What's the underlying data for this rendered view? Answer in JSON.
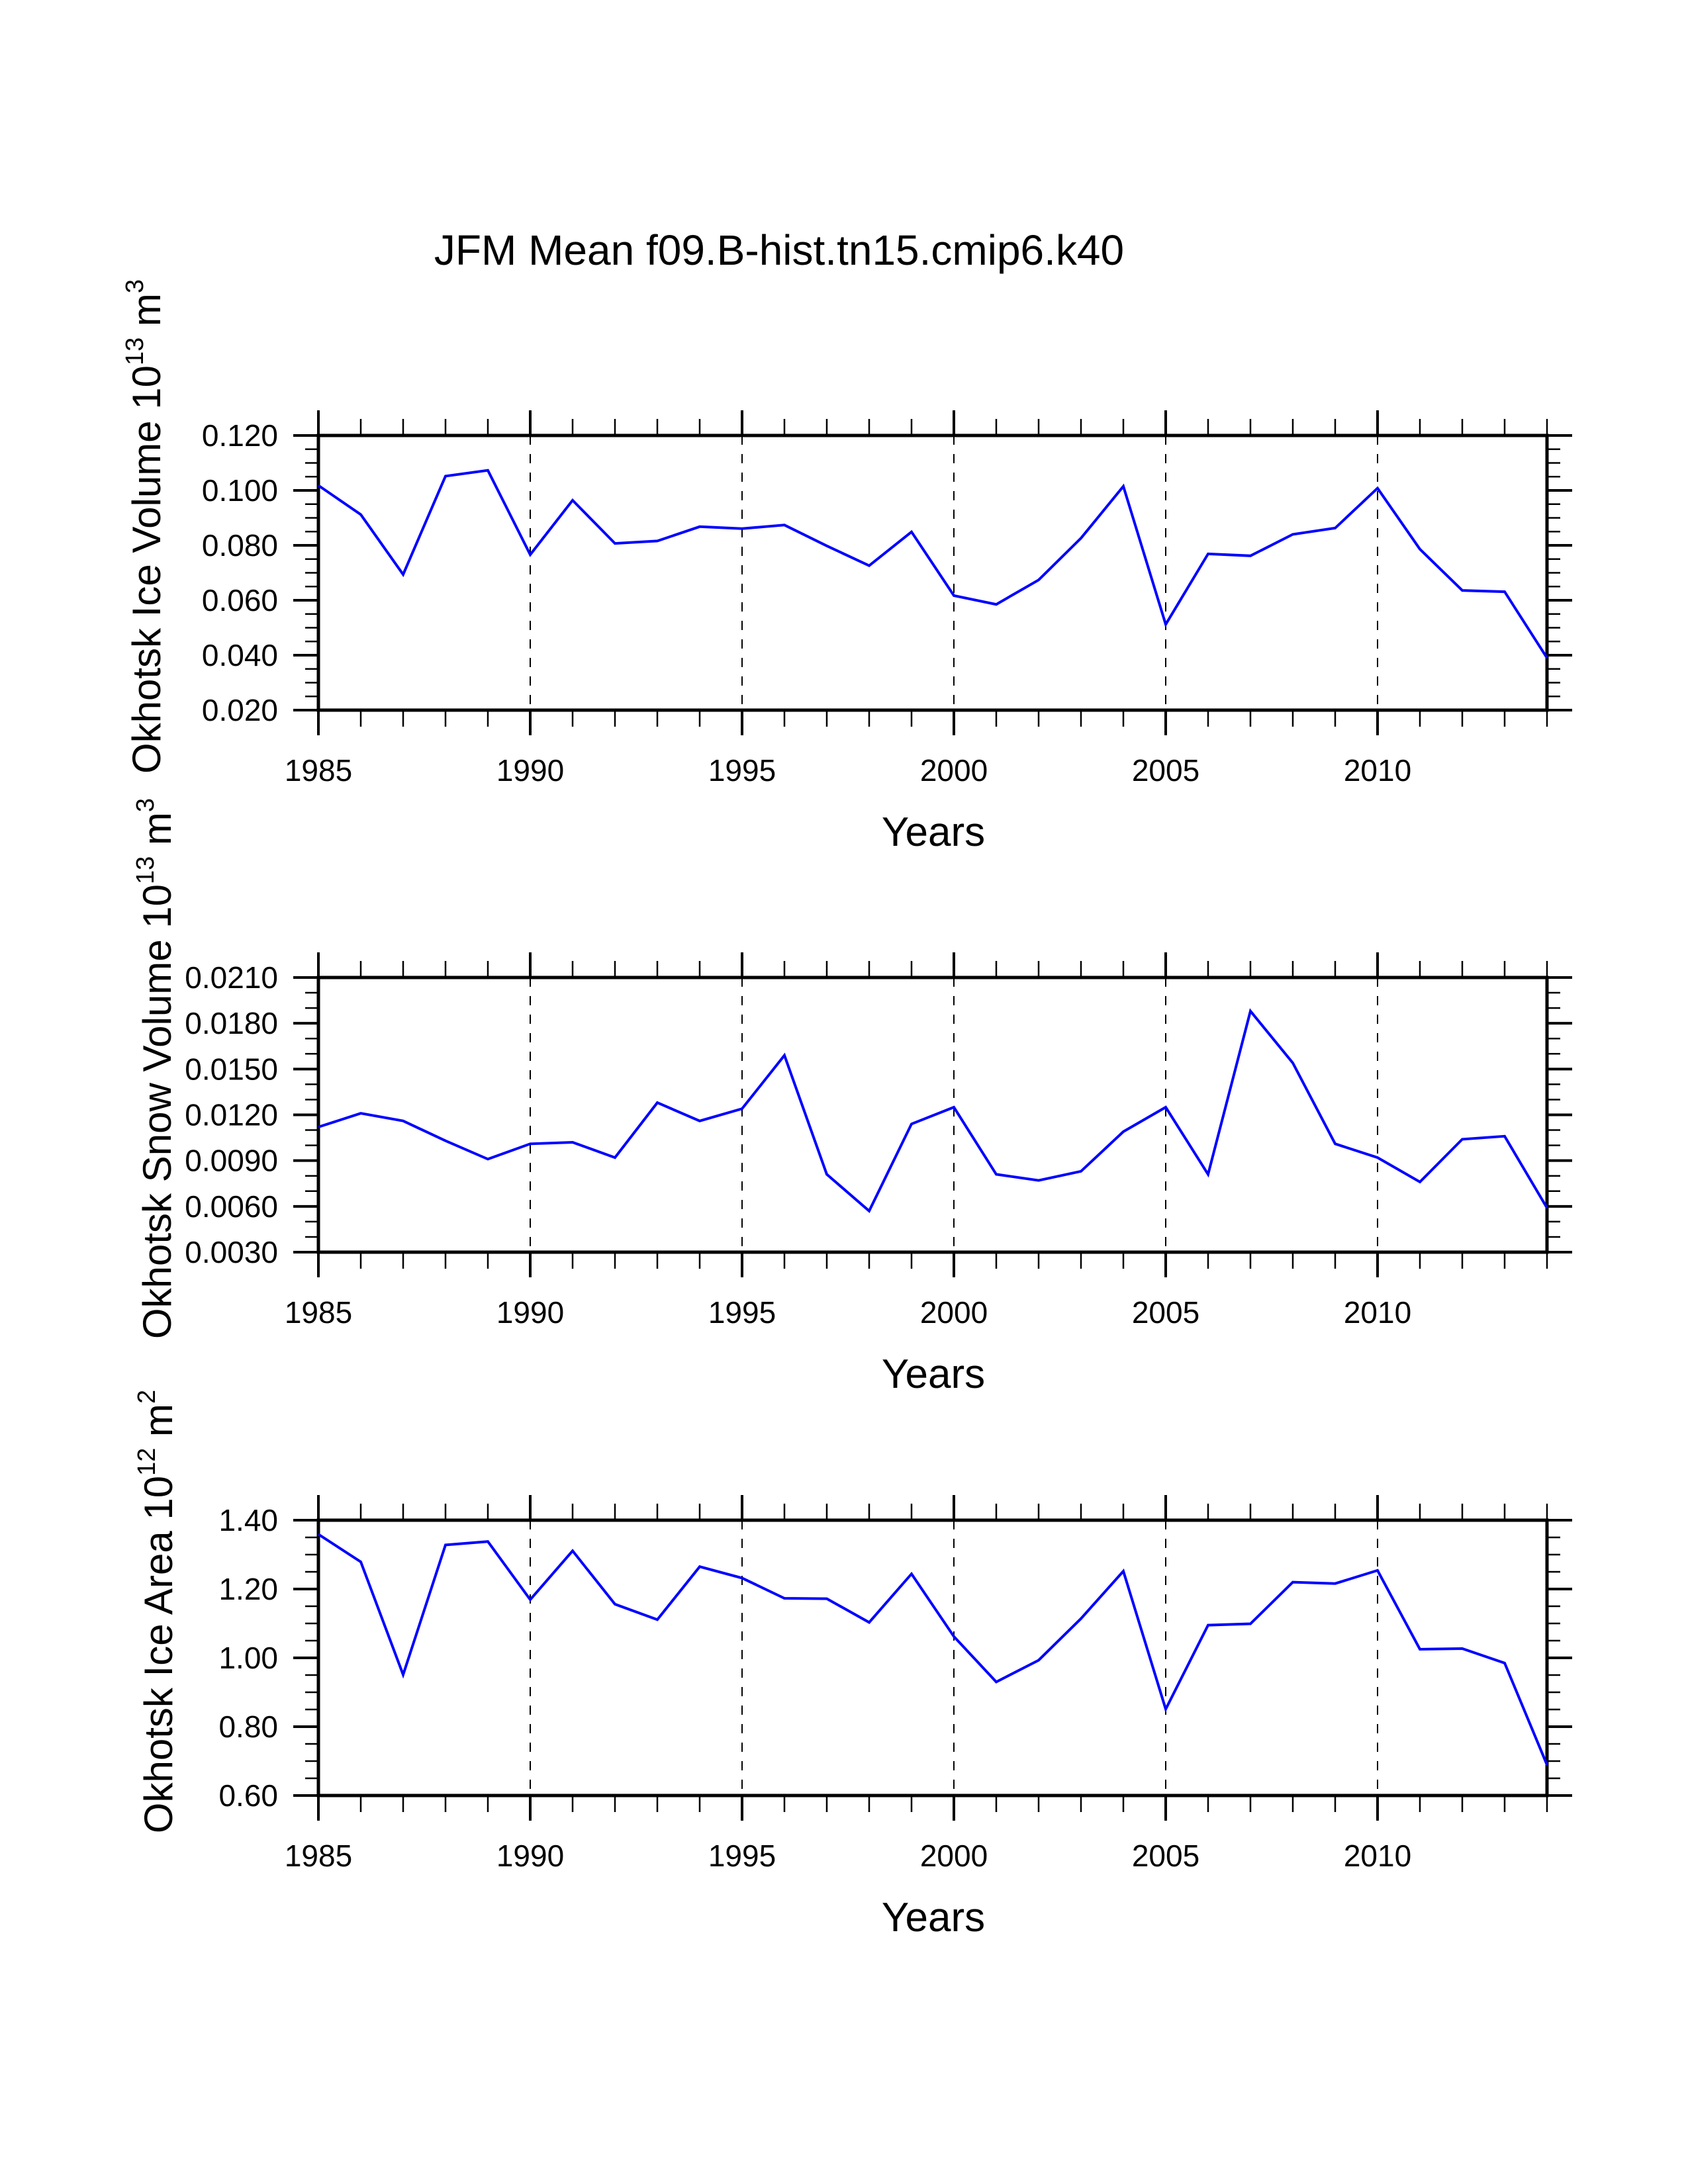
{
  "chart_data": {
    "type": "line",
    "title": "JFM Mean f09.B-hist.tn15.cmip6.k40",
    "line_color": "#0000ff",
    "grid": "vertical dashed at major x ticks",
    "panels": [
      {
        "id": "ice-volume",
        "ylabel": "Okhotsk Ice Volume 10",
        "ylabel_sup": "13",
        "ylabel_unit": " m",
        "ylabel_unit_sup": "3",
        "xlabel": "Years",
        "xlim": [
          1985,
          2014
        ],
        "ylim": [
          0.02,
          0.12
        ],
        "yticks": [
          0.02,
          0.04,
          0.06,
          0.08,
          0.1,
          0.12
        ],
        "ytick_labels": [
          "0.020",
          "0.040",
          "0.060",
          "0.080",
          "0.100",
          "0.120"
        ],
        "yminor_step": 0.005,
        "xticks": [
          1985,
          1990,
          1995,
          2000,
          2005,
          2010
        ],
        "xtick_labels": [
          "1985",
          "1990",
          "1995",
          "2000",
          "2005",
          "2010"
        ],
        "x": [
          1985,
          1986,
          1987,
          1988,
          1989,
          1990,
          1991,
          1992,
          1993,
          1994,
          1995,
          1996,
          1997,
          1998,
          1999,
          2000,
          2001,
          2002,
          2003,
          2004,
          2005,
          2006,
          2007,
          2008,
          2009,
          2010,
          2011,
          2012,
          2013,
          2014
        ],
        "values": [
          0.1018,
          0.0912,
          0.0694,
          0.1052,
          0.1073,
          0.0766,
          0.0964,
          0.0807,
          0.0816,
          0.0868,
          0.0861,
          0.0874,
          0.0798,
          0.0726,
          0.0849,
          0.0617,
          0.0585,
          0.0674,
          0.0826,
          0.1015,
          0.0512,
          0.0769,
          0.0762,
          0.084,
          0.0863,
          0.1008,
          0.0786,
          0.0636,
          0.0631,
          0.039
        ]
      },
      {
        "id": "snow-volume",
        "ylabel": "Okhotsk Snow Volume 10",
        "ylabel_sup": "13",
        "ylabel_unit": " m",
        "ylabel_unit_sup": "3",
        "xlabel": "Years",
        "xlim": [
          1985,
          2014
        ],
        "ylim": [
          0.003,
          0.021
        ],
        "yticks": [
          0.003,
          0.006,
          0.009,
          0.012,
          0.015,
          0.018,
          0.021
        ],
        "ytick_labels": [
          "0.0030",
          "0.0060",
          "0.0090",
          "0.0120",
          "0.0150",
          "0.0180",
          "0.0210"
        ],
        "yminor_step": 0.001,
        "xticks": [
          1985,
          1990,
          1995,
          2000,
          2005,
          2010
        ],
        "xtick_labels": [
          "1985",
          "1990",
          "1995",
          "2000",
          "2005",
          "2010"
        ],
        "x": [
          1985,
          1986,
          1987,
          1988,
          1989,
          1990,
          1991,
          1992,
          1993,
          1994,
          1995,
          1996,
          1997,
          1998,
          1999,
          2000,
          2001,
          2002,
          2003,
          2004,
          2005,
          2006,
          2007,
          2008,
          2009,
          2010,
          2011,
          2012,
          2013,
          2014
        ],
        "values": [
          0.0112,
          0.0121,
          0.0116,
          0.0103,
          0.0091,
          0.0101,
          0.0102,
          0.0092,
          0.0128,
          0.0116,
          0.0124,
          0.0159,
          0.0081,
          0.0057,
          0.0114,
          0.0125,
          0.0081,
          0.0077,
          0.0083,
          0.0109,
          0.0125,
          0.0081,
          0.0188,
          0.0154,
          0.0101,
          0.0092,
          0.0076,
          0.0104,
          0.0106,
          0.0059
        ]
      },
      {
        "id": "ice-area",
        "ylabel": "Okhotsk Ice Area 10",
        "ylabel_sup": "12",
        "ylabel_unit": " m",
        "ylabel_unit_sup": "2",
        "xlabel": "Years",
        "xlim": [
          1985,
          2014
        ],
        "ylim": [
          0.6,
          1.4
        ],
        "yticks": [
          0.6,
          0.8,
          1.0,
          1.2,
          1.4
        ],
        "ytick_labels": [
          "0.60",
          "0.80",
          "1.00",
          "1.20",
          "1.40"
        ],
        "yminor_step": 0.05,
        "xticks": [
          1985,
          1990,
          1995,
          2000,
          2005,
          2010
        ],
        "xtick_labels": [
          "1985",
          "1990",
          "1995",
          "2000",
          "2005",
          "2010"
        ],
        "x": [
          1985,
          1986,
          1987,
          1988,
          1989,
          1990,
          1991,
          1992,
          1993,
          1994,
          1995,
          1996,
          1997,
          1998,
          1999,
          2000,
          2001,
          2002,
          2003,
          2004,
          2005,
          2006,
          2007,
          2008,
          2009,
          2010,
          2011,
          2012,
          2013,
          2014
        ],
        "values": [
          1.359,
          1.279,
          0.951,
          1.328,
          1.338,
          1.169,
          1.311,
          1.156,
          1.111,
          1.265,
          1.232,
          1.173,
          1.172,
          1.103,
          1.244,
          1.062,
          0.93,
          0.993,
          1.114,
          1.252,
          0.851,
          1.095,
          1.099,
          1.22,
          1.216,
          1.254,
          1.025,
          1.027,
          0.985,
          0.689
        ]
      }
    ]
  }
}
